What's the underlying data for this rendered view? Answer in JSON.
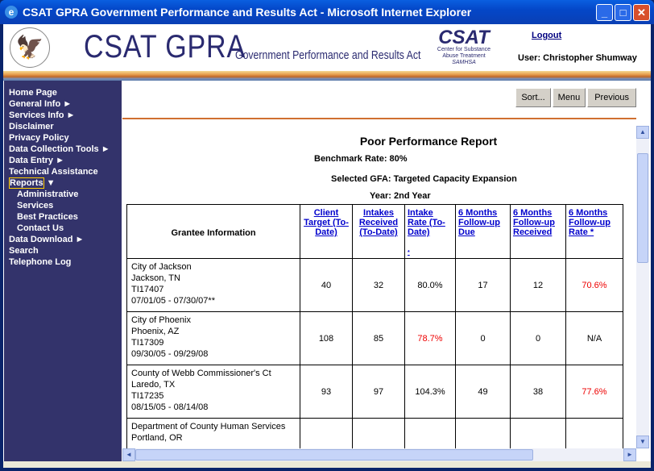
{
  "window": {
    "title": "CSAT GPRA Government Performance and Results Act - Microsoft Internet Explorer"
  },
  "header": {
    "brand": "CSAT GPRA",
    "subtitle": "Government Performance and Results Act",
    "logo_text": "CSAT",
    "logo_sub1": "Center for Substance",
    "logo_sub2": "Abuse Treatment",
    "logo_sub3": "SAMHSA",
    "logout": "Logout",
    "user": "User: Christopher Shumway"
  },
  "sidebar": {
    "items": [
      {
        "label": "Home Page"
      },
      {
        "label": "General Info ►"
      },
      {
        "label": "Services Info ►"
      },
      {
        "label": "Disclaimer"
      },
      {
        "label": "Privacy Policy"
      },
      {
        "label": "Data Collection Tools ►"
      },
      {
        "label": "Data Entry ►"
      },
      {
        "label": "Technical Assistance"
      },
      {
        "label": "Reports",
        "arrow": "▼"
      },
      {
        "label": "Administrative"
      },
      {
        "label": "Services"
      },
      {
        "label": "Best Practices"
      },
      {
        "label": "Contact Us"
      },
      {
        "label": "Data Download ►"
      },
      {
        "label": "Search"
      },
      {
        "label": "Telephone Log"
      }
    ]
  },
  "toolbar": {
    "sort": "Sort...",
    "menu": "Menu",
    "previous": "Previous"
  },
  "report": {
    "title": "Poor Performance Report",
    "benchmark_label": "Benchmark Rate:",
    "benchmark_value": "80%",
    "gfa_label": "Selected GFA:",
    "gfa_value": "Targeted Capacity Expansion",
    "year_label": "Year:",
    "year_value": "2nd Year"
  },
  "table": {
    "headers": [
      "Grantee Information",
      "Client Target (To-Date)",
      "Intakes Received (To-Date)",
      "Intake Rate (To-Date)",
      "6 Months Follow-up Due",
      "6 Months Follow-up Received",
      "6 Months Follow-up Rate *"
    ],
    "intake_note": "*",
    "rows": [
      {
        "name": "City of Jackson",
        "city": "Jackson, TN",
        "id": "TI17407",
        "dates": "07/01/05 - 07/30/07**",
        "target": "40",
        "intakes": "32",
        "rate": "80.0%",
        "due": "17",
        "received": "12",
        "fu_rate": "70.6%"
      },
      {
        "name": "City of Phoenix",
        "city": "Phoenix, AZ",
        "id": "TI17309",
        "dates": "09/30/05 - 09/29/08",
        "target": "108",
        "intakes": "85",
        "rate": "78.7%",
        "due": "0",
        "received": "0",
        "fu_rate": "N/A"
      },
      {
        "name": "County of Webb Commissioner's Ct",
        "city": "Laredo, TX",
        "id": "TI17235",
        "dates": "08/15/05 - 08/14/08",
        "target": "93",
        "intakes": "97",
        "rate": "104.3%",
        "due": "49",
        "received": "38",
        "fu_rate": "77.6%"
      },
      {
        "name": "Department of County Human Services",
        "city": "Portland, OR",
        "id": "",
        "dates": "",
        "target": "",
        "intakes": "",
        "rate": "",
        "due": "",
        "received": "",
        "fu_rate": ""
      }
    ]
  },
  "colors": {
    "sidebar": "#33336b",
    "alert": "#e00000",
    "link": "#0000cc"
  }
}
